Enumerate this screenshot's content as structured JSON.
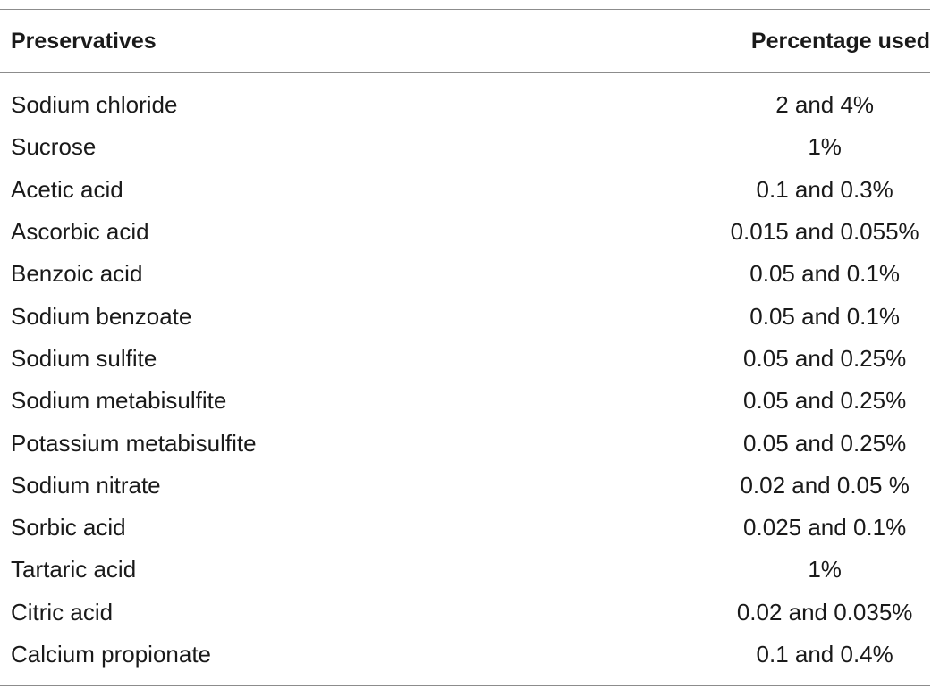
{
  "table": {
    "headers": {
      "name": "Preservatives",
      "value": "Percentage used"
    },
    "rows": [
      {
        "name": "Sodium chloride",
        "value": "2 and 4%"
      },
      {
        "name": "Sucrose",
        "value": "1%"
      },
      {
        "name": "Acetic acid",
        "value": "0.1 and 0.3%"
      },
      {
        "name": "Ascorbic acid",
        "value": "0.015 and 0.055%"
      },
      {
        "name": "Benzoic acid",
        "value": "0.05 and 0.1%"
      },
      {
        "name": "Sodium benzoate",
        "value": "0.05 and 0.1%"
      },
      {
        "name": "Sodium sulfite",
        "value": "0.05 and 0.25%"
      },
      {
        "name": "Sodium metabisulfite",
        "value": "0.05 and 0.25%"
      },
      {
        "name": "Potassium metabisulfite",
        "value": "0.05 and 0.25%"
      },
      {
        "name": "Sodium nitrate",
        "value": "0.02 and 0.05 %"
      },
      {
        "name": "Sorbic acid",
        "value": "0.025 and 0.1%"
      },
      {
        "name": "Tartaric acid",
        "value": "1%"
      },
      {
        "name": "Citric acid",
        "value": "0.02 and 0.035%"
      },
      {
        "name": "Calcium propionate",
        "value": "0.1 and 0.4%"
      }
    ]
  }
}
